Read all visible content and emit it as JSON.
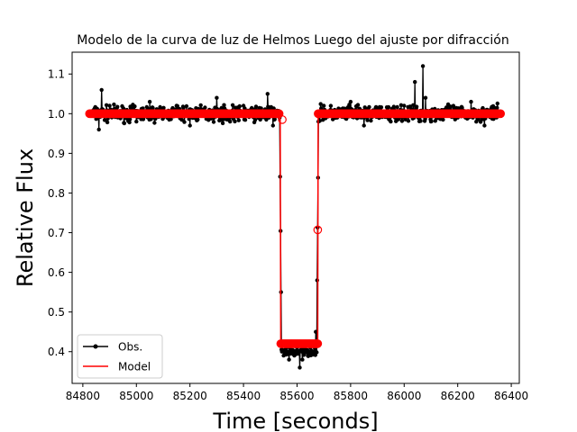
{
  "chart_data": {
    "type": "scatter",
    "title": "Modelo de la curva de luz de Helmos Luego del ajuste por difracción",
    "xlabel": "Time [seconds]",
    "ylabel": "Relative Flux",
    "xlim": [
      84760,
      86430
    ],
    "ylim": [
      0.32,
      1.155
    ],
    "xticks": [
      84800,
      85000,
      85200,
      85400,
      85600,
      85800,
      86000,
      86200,
      86400
    ],
    "xtick_labels": [
      "84800",
      "85000",
      "85200",
      "85400",
      "85600",
      "85800",
      "86000",
      "86200",
      "86400"
    ],
    "yticks": [
      0.4,
      0.5,
      0.6,
      0.7,
      0.8,
      0.9,
      1.0,
      1.1
    ],
    "ytick_labels": [
      "0.4",
      "0.5",
      "0.6",
      "0.7",
      "0.8",
      "0.9",
      "1.0",
      "1.1"
    ],
    "legend_position": "lower-left",
    "series": [
      {
        "name": "Obs.",
        "style": "black line with dot markers",
        "description": "noisy observations; baseline ~1.00 (scatter ~0.95-1.07), occultation floor ~0.40",
        "x": [
          84830,
          84860,
          84870,
          84900,
          84950,
          85000,
          85050,
          85100,
          85150,
          85200,
          85250,
          85300,
          85350,
          85400,
          85450,
          85490,
          85510,
          85530,
          85535,
          85540,
          85545,
          85550,
          85560,
          85570,
          85580,
          85590,
          85600,
          85610,
          85620,
          85630,
          85640,
          85650,
          85660,
          85670,
          85675,
          85680,
          85700,
          85750,
          85800,
          85850,
          85900,
          85950,
          86000,
          86040,
          86070,
          86080,
          86100,
          86150,
          86200,
          86250,
          86300,
          86350
        ],
        "y": [
          1.0,
          0.96,
          1.06,
          1.02,
          1.01,
          0.98,
          1.03,
          0.99,
          1.02,
          0.97,
          1.01,
          1.04,
          0.98,
          1.02,
          1.0,
          1.05,
          0.97,
          1.0,
          0.99,
          0.55,
          0.42,
          0.39,
          0.41,
          0.38,
          0.4,
          0.39,
          0.41,
          0.36,
          0.38,
          0.4,
          0.39,
          0.41,
          0.4,
          0.45,
          0.58,
          0.98,
          1.02,
          0.99,
          1.03,
          0.97,
          1.01,
          0.98,
          1.02,
          1.08,
          1.12,
          1.04,
          0.98,
          1.01,
          0.99,
          1.03,
          0.97,
          1.0
        ]
      },
      {
        "name": "Model",
        "style": "red line with open circle markers",
        "description": "square-well diffraction model: 1.0 baseline, 0.42 floor between ~85537 and ~85678 s",
        "x": [
          84825,
          85535,
          85537,
          85539,
          85677,
          85679,
          86360
        ],
        "y": [
          1.0,
          1.0,
          0.985,
          0.42,
          0.42,
          1.0,
          1.0
        ]
      }
    ],
    "edge_markers": [
      {
        "x": 85545,
        "y": 0.985
      },
      {
        "x": 85677,
        "y": 0.707
      }
    ]
  }
}
